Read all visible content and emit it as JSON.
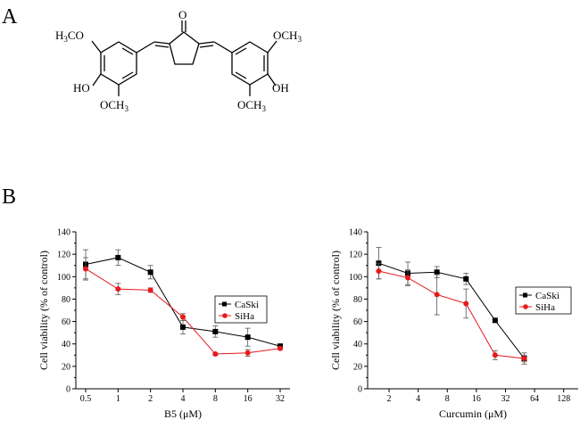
{
  "panels": [
    {
      "label": "A"
    },
    {
      "label": "B"
    }
  ],
  "structure": {
    "top": "O",
    "left_upper": "H3CO",
    "left_upper_parts": [
      "H",
      "3",
      "CO"
    ],
    "left_oh": "HO",
    "left_lower": "OCH3",
    "left_lower_parts": [
      "OCH",
      "3"
    ],
    "right_upper": "OCH3",
    "right_upper_parts": [
      "OCH",
      "3"
    ],
    "right_oh": "OH",
    "right_lower": "OCH3",
    "right_lower_parts": [
      "OCH",
      "3"
    ]
  },
  "chart_data": [
    {
      "type": "line",
      "xlabel": "B5 (μM)",
      "ylabel": "Cell viability (% of control)",
      "x_scale": "log2",
      "xticks": [
        "0.5",
        "1",
        "2",
        "4",
        "8",
        "16",
        "32"
      ],
      "x": [
        0.5,
        1,
        2,
        4,
        8,
        16,
        32
      ],
      "ylim": [
        0,
        140
      ],
      "yticks": [
        0,
        20,
        40,
        60,
        80,
        100,
        120,
        140
      ],
      "legend": "center-right",
      "series": [
        {
          "name": "CaSki",
          "color": "#000000",
          "marker": "square",
          "values": [
            111,
            117,
            104,
            55,
            51,
            46,
            38
          ],
          "errors": [
            13,
            7,
            6,
            6,
            5,
            8,
            2
          ]
        },
        {
          "name": "SiHa",
          "color": "#e8191c",
          "marker": "circle",
          "values": [
            107,
            89,
            88,
            64,
            31,
            32,
            36
          ],
          "errors": [
            10,
            5,
            2,
            3,
            1,
            3,
            1
          ]
        }
      ]
    },
    {
      "type": "line",
      "xlabel": "Curcumin (μM)",
      "ylabel": "Cell viability (% of control)",
      "x_scale": "log2",
      "xticks": [
        "2",
        "4",
        "8",
        "16",
        "32",
        "64",
        "128"
      ],
      "xlim": [
        1.2,
        181
      ],
      "ylim": [
        0,
        140
      ],
      "yticks": [
        0,
        20,
        40,
        60,
        80,
        100,
        120,
        140
      ],
      "legend": "center-right",
      "series": [
        {
          "name": "CaSki",
          "color": "#000000",
          "marker": "square",
          "x": [
            1.5625,
            3.125,
            6.25,
            12.5,
            25,
            50
          ],
          "values": [
            112,
            103,
            104,
            98,
            61,
            27
          ],
          "errors": [
            14,
            10,
            5,
            5,
            0,
            5
          ]
        },
        {
          "name": "SiHa",
          "color": "#e8191c",
          "marker": "circle",
          "x": [
            1.5625,
            3.125,
            6.25,
            12.5,
            25,
            50
          ],
          "values": [
            105,
            99,
            84,
            76,
            30,
            27
          ],
          "errors": [
            7,
            7,
            18,
            13,
            4,
            3
          ]
        }
      ]
    }
  ]
}
